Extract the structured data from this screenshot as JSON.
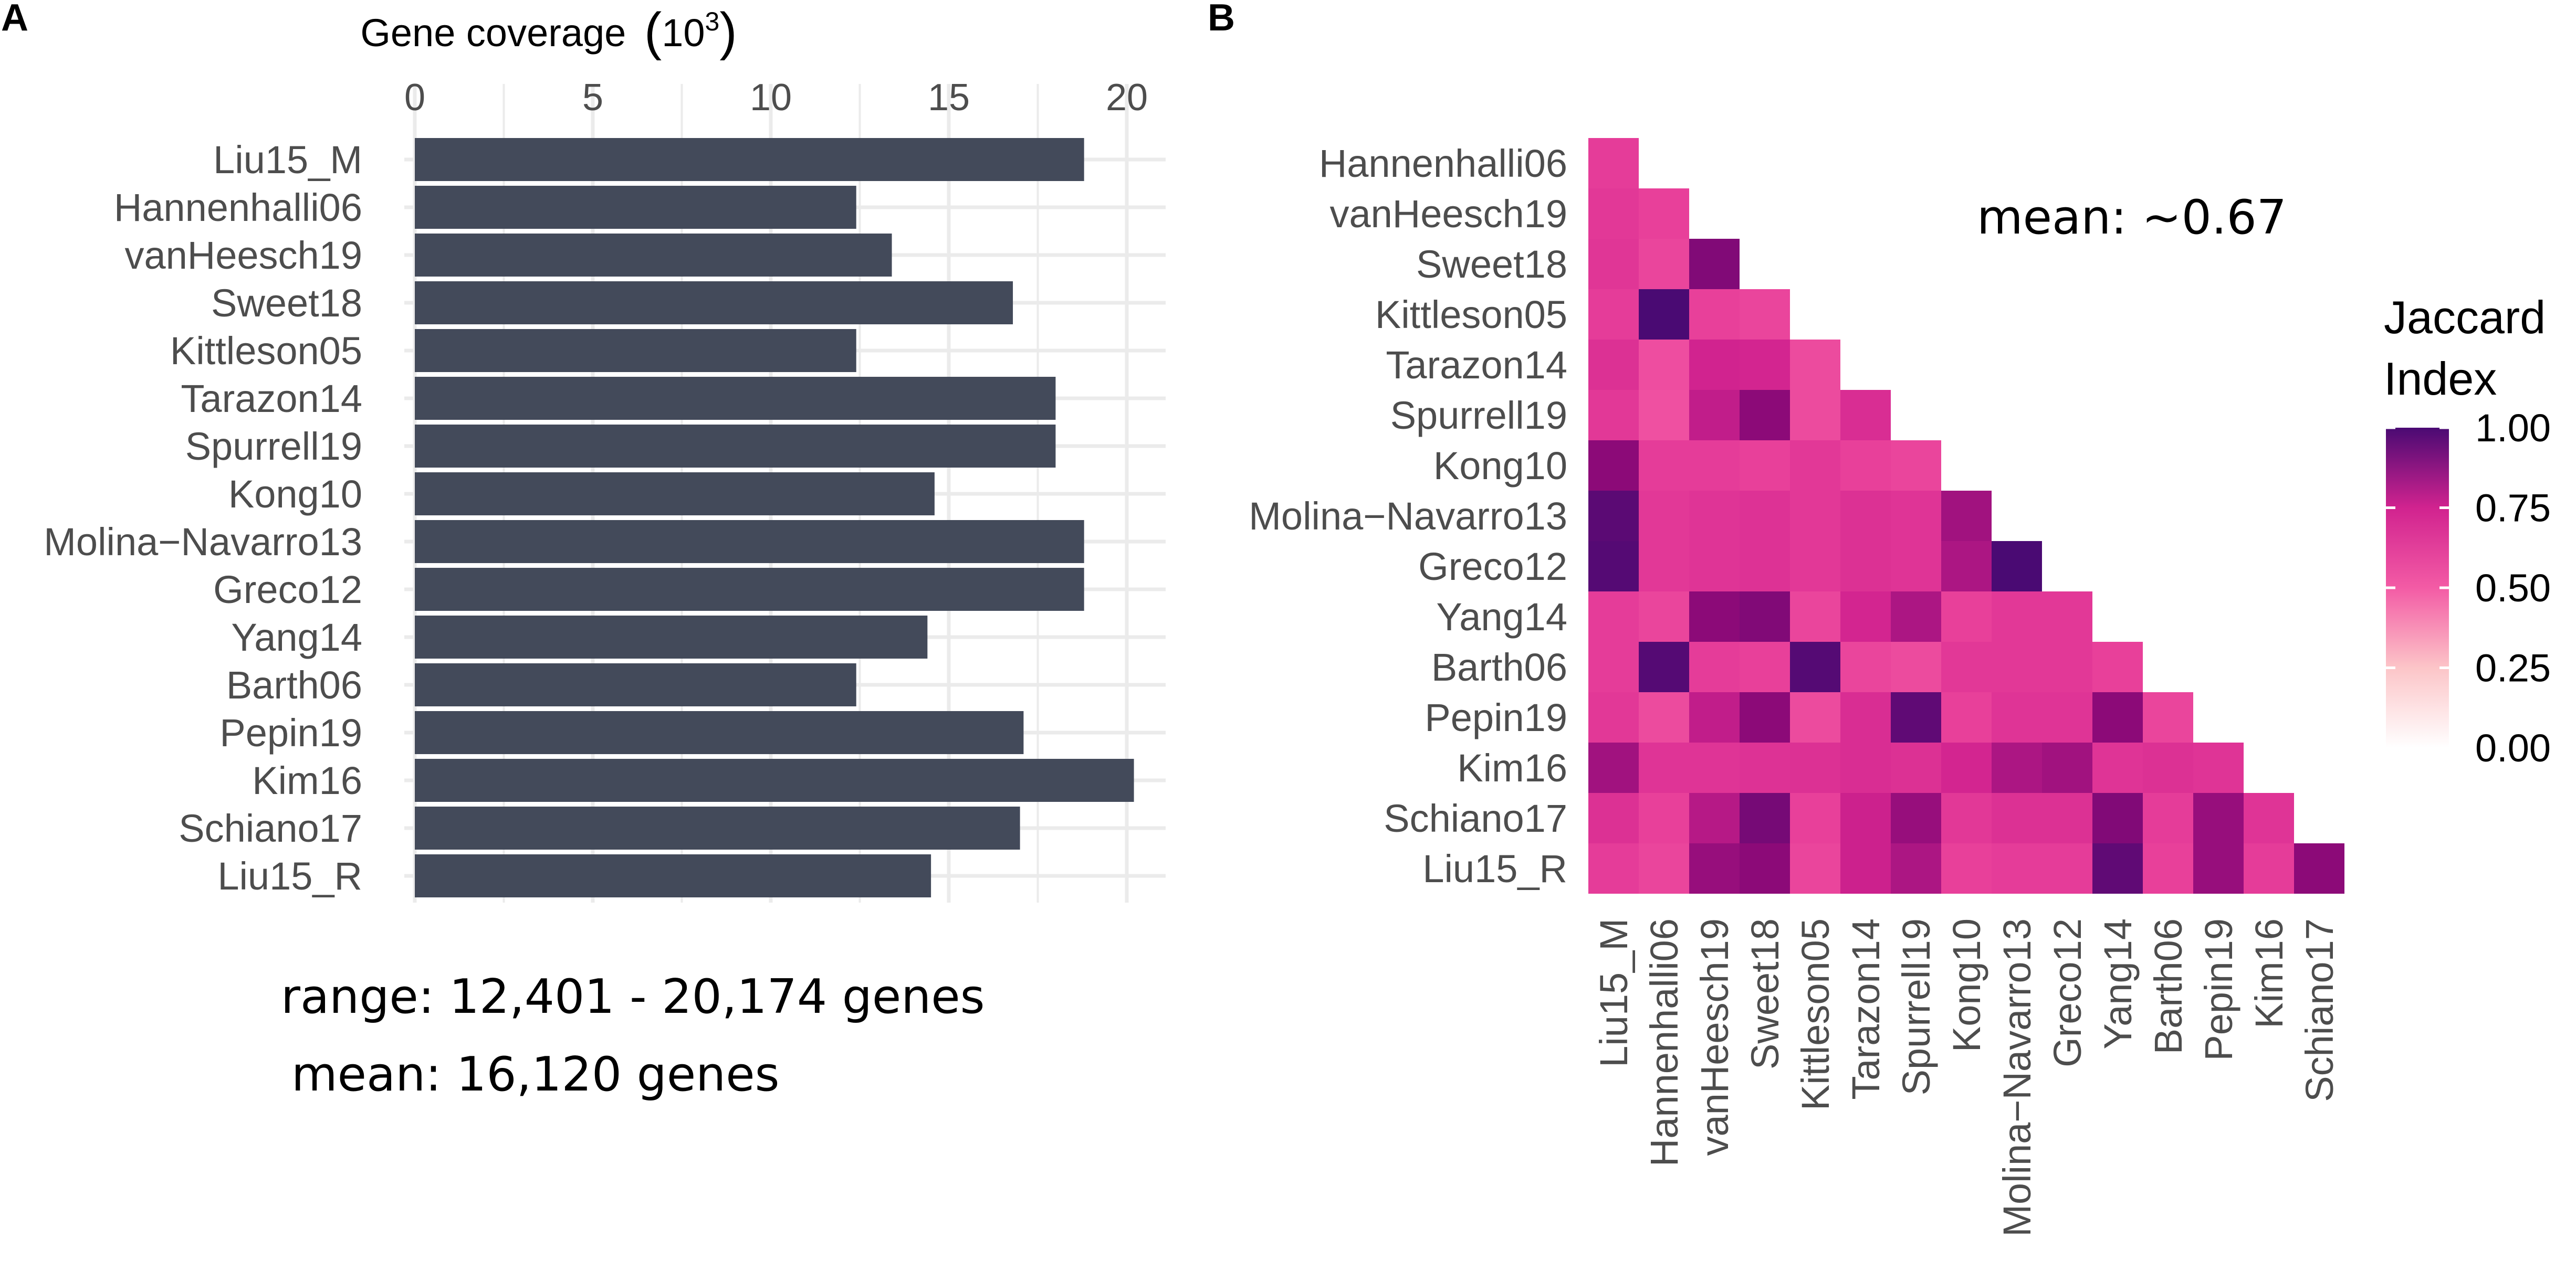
{
  "panels": {
    "a_label": "A",
    "b_label": "B"
  },
  "chart_data": [
    {
      "type": "bar",
      "orientation": "horizontal",
      "xlabel": "Gene coverage",
      "xlabel_unit_base": "10",
      "xlabel_unit_exp": "3",
      "axis_position": "top",
      "xlim": [
        0,
        21
      ],
      "xticks": [
        0,
        5,
        10,
        15,
        20
      ],
      "grid": true,
      "bar_color": "#434a5a",
      "categories": [
        "Liu15_M",
        "Hannenhalli06",
        "vanHeesch19",
        "Sweet18",
        "Kittleson05",
        "Tarazon14",
        "Spurrell19",
        "Kong10",
        "Molina−Navarro13",
        "Greco12",
        "Yang14",
        "Barth06",
        "Pepin19",
        "Kim16",
        "Schiano17",
        "Liu15_R"
      ],
      "values": [
        18.8,
        12.4,
        13.4,
        16.8,
        12.4,
        18.0,
        18.0,
        14.6,
        18.8,
        18.8,
        14.4,
        12.4,
        17.1,
        20.2,
        17.0,
        14.5
      ],
      "annotations": [
        "range: 12,401 - 20,174 genes",
        "mean: 16,120 genes"
      ]
    },
    {
      "type": "heatmap",
      "layout": "lower-triangle",
      "rows": [
        "Hannenhalli06",
        "vanHeesch19",
        "Sweet18",
        "Kittleson05",
        "Tarazon14",
        "Spurrell19",
        "Kong10",
        "Molina−Navarro13",
        "Greco12",
        "Yang14",
        "Barth06",
        "Pepin19",
        "Kim16",
        "Schiano17",
        "Liu15_R"
      ],
      "columns": [
        "Liu15_M",
        "Hannenhalli06",
        "vanHeesch19",
        "Sweet18",
        "Kittleson05",
        "Tarazon14",
        "Spurrell19",
        "Kong10",
        "Molina−Navarro13",
        "Greco12",
        "Yang14",
        "Barth06",
        "Pepin19",
        "Kim16",
        "Schiano17"
      ],
      "values": [
        [
          0.62
        ],
        [
          0.64,
          0.6
        ],
        [
          0.65,
          0.58,
          0.9
        ],
        [
          0.62,
          1.0,
          0.6,
          0.58
        ],
        [
          0.68,
          0.55,
          0.75,
          0.74,
          0.56
        ],
        [
          0.64,
          0.54,
          0.78,
          0.88,
          0.56,
          0.7
        ],
        [
          0.88,
          0.62,
          0.62,
          0.6,
          0.64,
          0.6,
          0.58
        ],
        [
          0.97,
          0.64,
          0.66,
          0.67,
          0.64,
          0.68,
          0.66,
          0.84
        ],
        [
          0.98,
          0.64,
          0.66,
          0.67,
          0.64,
          0.68,
          0.66,
          0.82,
          1.0
        ],
        [
          0.62,
          0.58,
          0.88,
          0.9,
          0.58,
          0.74,
          0.82,
          0.6,
          0.64,
          0.64
        ],
        [
          0.62,
          0.98,
          0.62,
          0.6,
          0.98,
          0.58,
          0.56,
          0.64,
          0.64,
          0.64,
          0.6
        ],
        [
          0.64,
          0.56,
          0.78,
          0.88,
          0.56,
          0.7,
          0.96,
          0.6,
          0.66,
          0.66,
          0.88,
          0.58
        ],
        [
          0.84,
          0.66,
          0.66,
          0.67,
          0.68,
          0.7,
          0.68,
          0.74,
          0.82,
          0.84,
          0.66,
          0.68,
          0.66
        ],
        [
          0.68,
          0.6,
          0.8,
          0.92,
          0.6,
          0.76,
          0.86,
          0.64,
          0.68,
          0.68,
          0.9,
          0.62,
          0.86,
          0.66
        ],
        [
          0.62,
          0.58,
          0.86,
          0.88,
          0.58,
          0.76,
          0.82,
          0.6,
          0.62,
          0.62,
          0.96,
          0.6,
          0.86,
          0.62,
          0.88
        ]
      ],
      "annotation": "mean: ~0.67",
      "legend": {
        "title_lines": [
          "Jaccard",
          "Index"
        ],
        "ticks": [
          "1.00",
          "0.75",
          "0.50",
          "0.25",
          "0.00"
        ],
        "placement": "right"
      }
    }
  ]
}
